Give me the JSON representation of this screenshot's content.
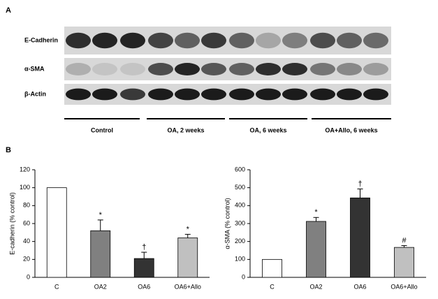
{
  "panel_a": {
    "label": "A",
    "rows": [
      "E-Cadherin",
      "α-SMA",
      "β-Actin"
    ],
    "groups": [
      "Control",
      "OA, 2 weeks",
      "OA, 6 weeks",
      "OA+Allo, 6 weeks"
    ]
  },
  "panel_b": {
    "label": "B"
  },
  "chart_data": [
    {
      "type": "bar",
      "y_label": "E-cadherin (% control)",
      "categories": [
        "C",
        "OA2",
        "OA6",
        "OA6+Allo"
      ],
      "values": [
        100,
        52,
        21,
        44
      ],
      "errors": [
        null,
        12,
        7,
        4
      ],
      "markers": [
        null,
        "*",
        "†",
        "*"
      ],
      "colors": [
        "#ffffff",
        "#808080",
        "#333333",
        "#c0c0c0"
      ],
      "ylim": [
        0,
        120
      ],
      "yticks": [
        0,
        20,
        40,
        60,
        80,
        100,
        120
      ]
    },
    {
      "type": "bar",
      "y_label": "α-SMA (% control)",
      "categories": [
        "C",
        "OA2",
        "OA6",
        "OA6+Allo"
      ],
      "values": [
        100,
        312,
        443,
        167
      ],
      "errors": [
        null,
        22,
        50,
        10
      ],
      "markers": [
        null,
        "*",
        "†",
        "#"
      ],
      "colors": [
        "#ffffff",
        "#808080",
        "#333333",
        "#c0c0c0"
      ],
      "ylim": [
        0,
        600
      ],
      "yticks": [
        0,
        100,
        200,
        300,
        400,
        500,
        600
      ]
    }
  ]
}
